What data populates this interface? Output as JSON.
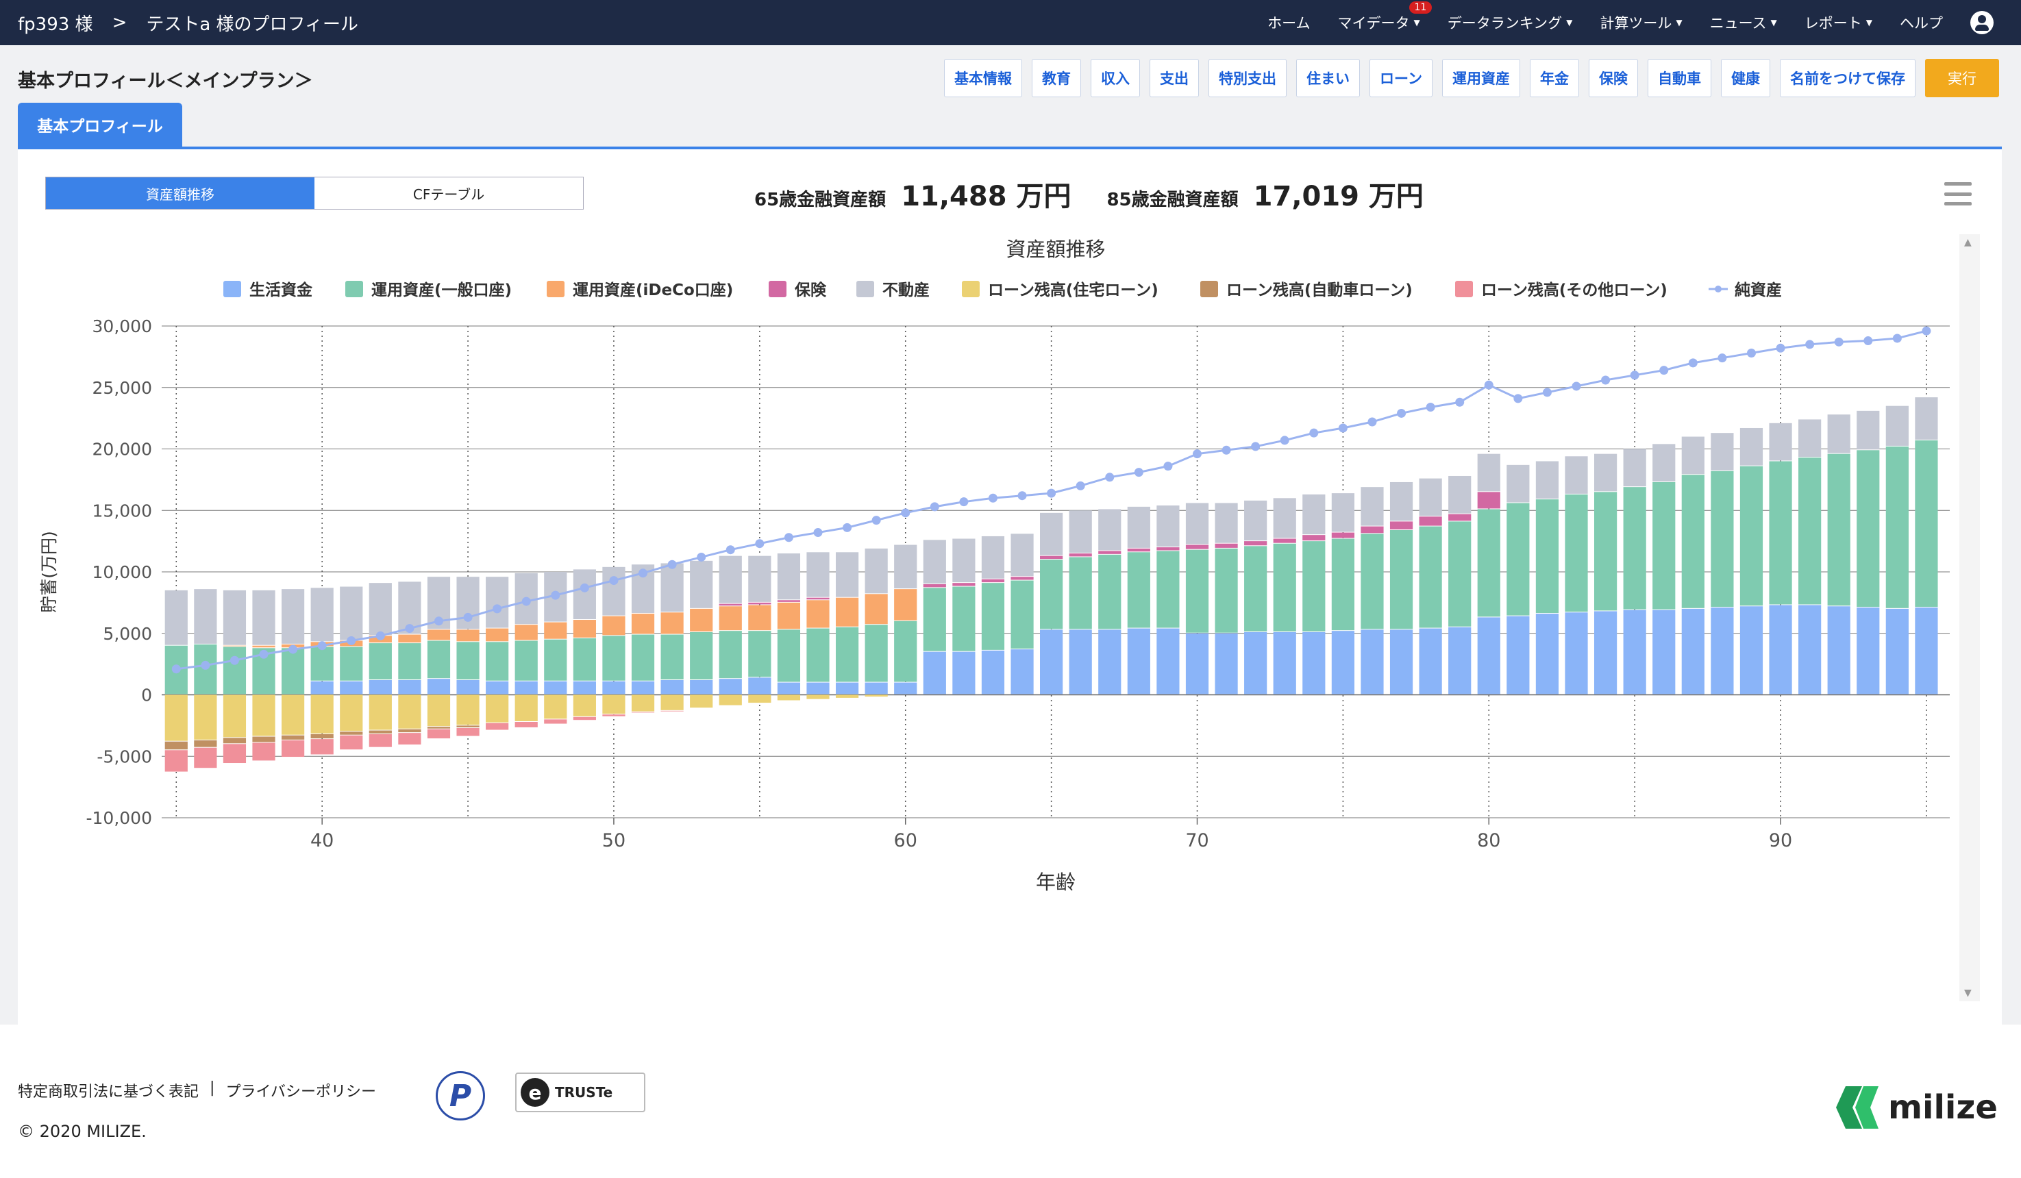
{
  "header": {
    "user": "fp393 様",
    "separator": ">",
    "profile": "テストa 様のプロフィール",
    "nav": [
      {
        "label": "ホーム",
        "dropdown": false
      },
      {
        "label": "マイデータ",
        "dropdown": true,
        "badge": "11"
      },
      {
        "label": "データランキング",
        "dropdown": true
      },
      {
        "label": "計算ツール",
        "dropdown": true
      },
      {
        "label": "ニュース",
        "dropdown": true
      },
      {
        "label": "レポート",
        "dropdown": true
      },
      {
        "label": "ヘルプ",
        "dropdown": false
      }
    ]
  },
  "page": {
    "title": "基本プロフィール＜メインプラン＞",
    "toolbar": [
      "基本情報",
      "教育",
      "収入",
      "支出",
      "特別支出",
      "住まい",
      "ローン",
      "運用資産",
      "年金",
      "保険",
      "自動車",
      "健康",
      "名前をつけて保存"
    ],
    "run_label": "実行",
    "tab": "基本プロフィール"
  },
  "panel": {
    "toggle": [
      "資産額推移",
      "CFテーブル"
    ],
    "summary": [
      {
        "label": "65歳金融資産額",
        "value": "11,488 万円"
      },
      {
        "label": "85歳金融資産額",
        "value": "17,019 万円"
      }
    ]
  },
  "colors": {
    "living": "#8ab4f8",
    "general": "#7fcbb0",
    "ideco": "#f9a86b",
    "insurance": "#d268a2",
    "realestate": "#c4c8d4",
    "loan_house": "#ebd173",
    "loan_car": "#c09062",
    "loan_other": "#f0909a",
    "net": "#9bb3f0",
    "accent": "#3b82e8",
    "navbar": "#1e2a45"
  },
  "chart_data": {
    "type": "bar",
    "title": "資産額推移",
    "xlabel": "年齢",
    "ylabel": "貯蓄(万円)",
    "ylim": [
      -10000,
      30000
    ],
    "yticks": [
      "30,000",
      "25,000",
      "20,000",
      "15,000",
      "10,000",
      "5,000",
      "0",
      "-5,000",
      "-10,000"
    ],
    "xticks": [
      40,
      50,
      60,
      70,
      80,
      90
    ],
    "legend": [
      "生活資金",
      "運用資産(一般口座)",
      "運用資産(iDeCo口座)",
      "保険",
      "不動産",
      "ローン残高(住宅ローン)",
      "ローン残高(自動車ローン)",
      "ローン残高(その他ローン)",
      "純資産"
    ],
    "ages": [
      35,
      36,
      37,
      38,
      39,
      40,
      41,
      42,
      43,
      44,
      45,
      46,
      47,
      48,
      49,
      50,
      51,
      52,
      53,
      54,
      55,
      56,
      57,
      58,
      59,
      60,
      61,
      62,
      63,
      64,
      65,
      66,
      67,
      68,
      69,
      70,
      71,
      72,
      73,
      74,
      75,
      76,
      77,
      78,
      79,
      80,
      81,
      82,
      83,
      84,
      85,
      86,
      87,
      88,
      89,
      90,
      91,
      92,
      93,
      94,
      95
    ],
    "series": [
      {
        "name": "生活資金",
        "values": [
          0,
          0,
          0,
          0,
          0,
          1100,
          1100,
          1200,
          1200,
          1300,
          1200,
          1100,
          1100,
          1100,
          1100,
          1100,
          1100,
          1200,
          1200,
          1300,
          1400,
          1000,
          1000,
          1000,
          1000,
          1000,
          3500,
          3500,
          3600,
          3700,
          5300,
          5300,
          5300,
          5400,
          5400,
          5000,
          5000,
          5100,
          5100,
          5100,
          5200,
          5300,
          5300,
          5400,
          5500,
          6300,
          6400,
          6600,
          6700,
          6800,
          6900,
          6900,
          7000,
          7100,
          7200,
          7300,
          7300,
          7200,
          7100,
          7000,
          7100
        ]
      },
      {
        "name": "運用資産(一般口座)",
        "values": [
          4000,
          4100,
          3900,
          3800,
          3800,
          2800,
          2800,
          3000,
          3000,
          3100,
          3100,
          3200,
          3300,
          3400,
          3500,
          3700,
          3800,
          3700,
          3900,
          3900,
          3800,
          4300,
          4400,
          4500,
          4700,
          5000,
          5200,
          5300,
          5500,
          5600,
          5700,
          5900,
          6100,
          6200,
          6300,
          6800,
          6900,
          7000,
          7200,
          7400,
          7500,
          7800,
          8100,
          8300,
          8600,
          8800,
          9200,
          9300,
          9600,
          9700,
          10000,
          10400,
          10900,
          11100,
          11400,
          11700,
          12000,
          12400,
          12800,
          13200,
          13600
        ]
      },
      {
        "name": "運用資産(iDeCo口座)",
        "values": [
          0,
          0,
          100,
          200,
          300,
          400,
          500,
          600,
          700,
          900,
          1000,
          1100,
          1300,
          1400,
          1500,
          1600,
          1700,
          1800,
          1900,
          2000,
          2100,
          2200,
          2300,
          2400,
          2500,
          2600,
          0,
          0,
          0,
          0,
          0,
          0,
          0,
          0,
          0,
          0,
          0,
          0,
          0,
          0,
          0,
          0,
          0,
          0,
          0,
          0,
          0,
          0,
          0,
          0,
          0,
          0,
          0,
          0,
          0,
          0,
          0,
          0,
          0,
          0,
          0
        ]
      },
      {
        "name": "保険",
        "values": [
          0,
          0,
          0,
          0,
          0,
          0,
          0,
          0,
          0,
          0,
          0,
          0,
          0,
          0,
          0,
          0,
          0,
          0,
          0,
          200,
          200,
          200,
          200,
          0,
          0,
          0,
          300,
          300,
          300,
          300,
          300,
          300,
          300,
          300,
          300,
          400,
          400,
          400,
          400,
          500,
          500,
          600,
          700,
          800,
          600,
          1400,
          0,
          0,
          0,
          0,
          0,
          0,
          0,
          0,
          0,
          0,
          0,
          0,
          0,
          0,
          0
        ]
      },
      {
        "name": "不動産",
        "values": [
          4500,
          4500,
          4500,
          4500,
          4500,
          4400,
          4400,
          4300,
          4300,
          4300,
          4300,
          4200,
          4200,
          4100,
          4100,
          4000,
          4000,
          4000,
          3900,
          3900,
          3800,
          3800,
          3700,
          3700,
          3700,
          3600,
          3600,
          3600,
          3500,
          3500,
          3500,
          3500,
          3400,
          3400,
          3400,
          3400,
          3300,
          3300,
          3300,
          3300,
          3200,
          3200,
          3200,
          3100,
          3100,
          3100,
          3100,
          3100,
          3100,
          3100,
          3100,
          3100,
          3100,
          3100,
          3100,
          3100,
          3100,
          3200,
          3200,
          3300,
          3500
        ]
      },
      {
        "name": "ローン残高(住宅ローン)",
        "values": [
          -3800,
          -3700,
          -3500,
          -3400,
          -3300,
          -3200,
          -3000,
          -2900,
          -2800,
          -2600,
          -2500,
          -2300,
          -2200,
          -2000,
          -1800,
          -1600,
          -1400,
          -1300,
          -1100,
          -900,
          -700,
          -500,
          -400,
          -300,
          -200,
          0,
          0,
          0,
          0,
          0,
          0,
          0,
          0,
          0,
          0,
          0,
          0,
          0,
          0,
          0,
          0,
          0,
          0,
          0,
          0,
          0,
          0,
          0,
          0,
          0,
          0,
          0,
          0,
          0,
          0,
          0,
          0,
          0,
          0,
          0,
          0
        ]
      },
      {
        "name": "ローン残高(自動車ローン)",
        "values": [
          -700,
          -600,
          -500,
          -500,
          -400,
          -400,
          -300,
          -300,
          -300,
          -200,
          -200,
          0,
          0,
          0,
          0,
          0,
          0,
          0,
          0,
          0,
          0,
          0,
          0,
          0,
          0,
          0,
          0,
          0,
          0,
          0,
          0,
          0,
          0,
          0,
          0,
          0,
          0,
          0,
          0,
          0,
          0,
          0,
          0,
          0,
          0,
          0,
          0,
          0,
          0,
          0,
          0,
          0,
          0,
          0,
          0,
          0,
          0,
          0,
          0,
          0,
          0
        ]
      },
      {
        "name": "ローン残高(その他ローン)",
        "values": [
          -1800,
          -1700,
          -1600,
          -1500,
          -1400,
          -1300,
          -1200,
          -1100,
          -1000,
          -800,
          -700,
          -600,
          -500,
          -400,
          -300,
          -200,
          -100,
          -100,
          0,
          0,
          0,
          0,
          0,
          0,
          0,
          0,
          0,
          0,
          0,
          0,
          0,
          0,
          0,
          0,
          0,
          0,
          0,
          0,
          0,
          0,
          0,
          0,
          0,
          0,
          0,
          0,
          0,
          0,
          0,
          0,
          0,
          0,
          0,
          0,
          0,
          0,
          0,
          0,
          0,
          0,
          0
        ]
      },
      {
        "name": "純資産",
        "values": [
          2100,
          2400,
          2800,
          3300,
          3700,
          4000,
          4400,
          4800,
          5400,
          6000,
          6300,
          7000,
          7600,
          8100,
          8700,
          9300,
          9900,
          10600,
          11200,
          11800,
          12300,
          12800,
          13200,
          13600,
          14200,
          14800,
          15300,
          15700,
          16000,
          16200,
          16400,
          17000,
          17700,
          18100,
          18600,
          19600,
          19900,
          20200,
          20700,
          21300,
          21700,
          22200,
          22900,
          23400,
          23800,
          25200,
          24100,
          24600,
          25100,
          25600,
          26000,
          26400,
          27000,
          27400,
          27800,
          28200,
          28500,
          28700,
          28800,
          29000,
          29600
        ]
      }
    ]
  },
  "footer": {
    "links": [
      "特定商取引法に基づく表記",
      "|",
      "プライバシーポリシー"
    ],
    "copyright": "© 2020 MILIZE.",
    "seal_p": "P",
    "seal_truste": "TRUSTe",
    "logo": "milize"
  }
}
